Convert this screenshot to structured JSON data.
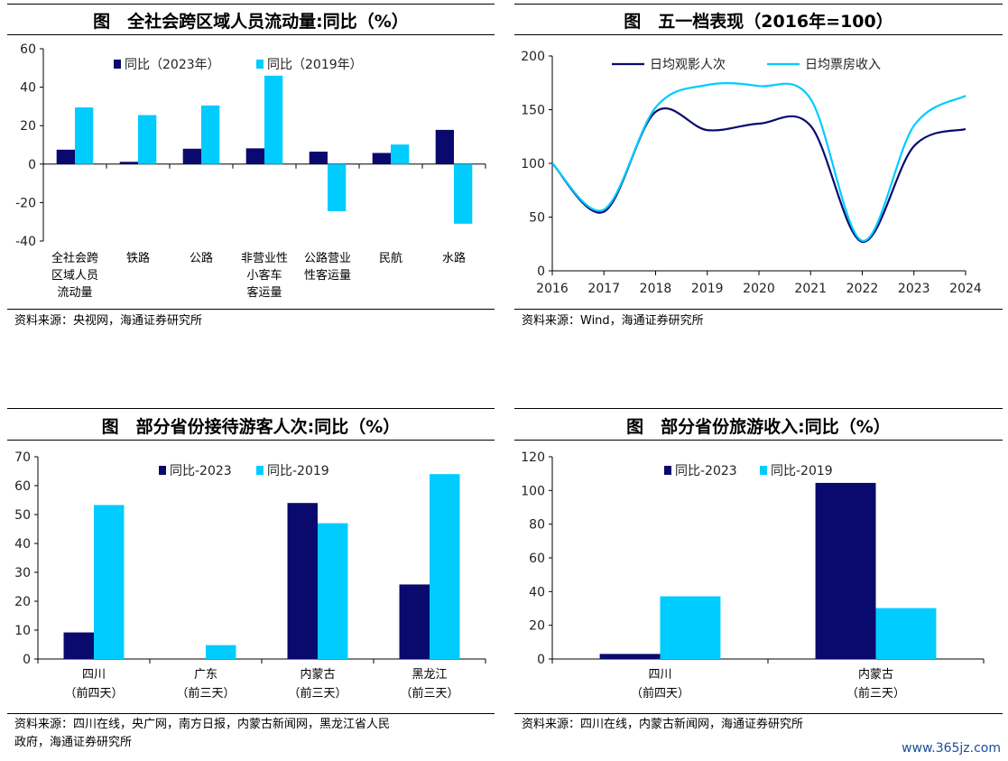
{
  "panels": [
    {
      "title": "图　全社会跨区域人员流动量:同比（%）",
      "source": "资料来源：央视网，海通证券研究所"
    },
    {
      "title": "图　五一档表现（2016年=100）",
      "source": "资料来源：Wind，海通证券研究所"
    },
    {
      "title": "图　部分省份接待游客人次:同比（%）",
      "source_lines": [
        "资料来源：四川在线，央广网，南方日报，内蒙古新闻网，黑龙江省人民",
        "政府，海通证券研究所"
      ]
    },
    {
      "title": "图　部分省份旅游收入:同比（%）",
      "source": "资料来源：四川在线，内蒙古新闻网，海通证券研究所"
    }
  ],
  "watermark": "www.365jz.com",
  "colors": {
    "dark": "#0a0a6e",
    "light": "#00ccff"
  },
  "chart_data": [
    {
      "type": "bar",
      "categories": [
        [
          "全社会跨",
          "区域人员",
          "流动量"
        ],
        [
          "铁路"
        ],
        [
          "公路"
        ],
        [
          "非营业性",
          "小客车",
          "客运量"
        ],
        [
          "公路营业",
          "性客运量"
        ],
        [
          "民航"
        ],
        [
          "水路"
        ]
      ],
      "series": [
        {
          "name": "同比（2023年）",
          "values": [
            7.5,
            1.2,
            8,
            8.2,
            6.5,
            5.8,
            17.8
          ]
        },
        {
          "name": "同比（2019年）",
          "values": [
            29.5,
            25.5,
            30.5,
            46,
            -24.5,
            10.2,
            -31
          ]
        }
      ],
      "ylim": [
        -40,
        60
      ],
      "yticks": [
        -40,
        -20,
        0,
        20,
        40,
        60
      ],
      "legend": "top"
    },
    {
      "type": "line",
      "x": [
        2016,
        2017,
        2018,
        2019,
        2020,
        2021,
        2022,
        2023,
        2024
      ],
      "series": [
        {
          "name": "日均观影人次",
          "values": [
            100,
            55,
            148,
            131,
            137,
            135,
            27,
            116,
            132
          ]
        },
        {
          "name": "日均票房收入",
          "values": [
            100,
            57,
            152,
            173,
            172,
            160,
            28,
            135,
            163
          ]
        }
      ],
      "ylim": [
        0,
        200
      ],
      "yticks": [
        0,
        50,
        100,
        150,
        200
      ],
      "legend": "top-left"
    },
    {
      "type": "bar",
      "categories": [
        [
          "四川",
          "（前四天）"
        ],
        [
          "广东",
          "（前三天）"
        ],
        [
          "内蒙古",
          "（前三天）"
        ],
        [
          "黑龙江",
          "（前三天）"
        ]
      ],
      "series": [
        {
          "name": "同比-2023",
          "values": [
            9.2,
            null,
            54,
            25.8
          ]
        },
        {
          "name": "同比-2019",
          "values": [
            53.3,
            4.8,
            47,
            64
          ]
        }
      ],
      "ylim": [
        0,
        70
      ],
      "yticks": [
        0,
        10,
        20,
        30,
        40,
        50,
        60,
        70
      ],
      "legend": "top"
    },
    {
      "type": "bar",
      "categories": [
        [
          "四川",
          "（前四天）"
        ],
        [
          "内蒙古",
          "（前三天）"
        ]
      ],
      "series": [
        {
          "name": "同比-2023",
          "values": [
            3,
            104.5
          ]
        },
        {
          "name": "同比-2019",
          "values": [
            37.2,
            30.2
          ]
        }
      ],
      "ylim": [
        0,
        120
      ],
      "yticks": [
        0,
        20,
        40,
        60,
        80,
        100,
        120
      ],
      "legend": "top"
    }
  ]
}
